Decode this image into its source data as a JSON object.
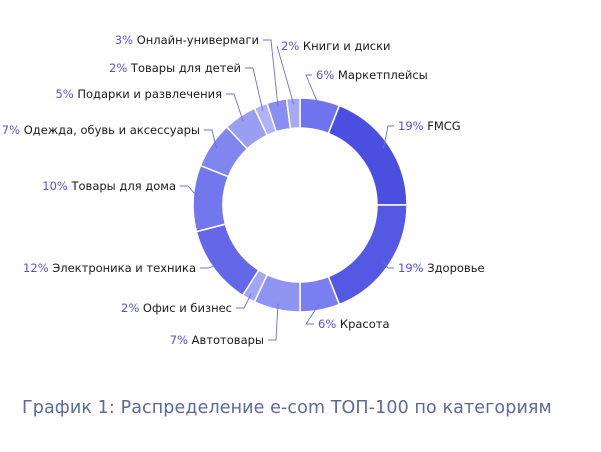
{
  "chart_data": {
    "type": "pie",
    "variant": "donut",
    "slices": [
      {
        "label": "Маркетплейсы",
        "pct_text": "6%",
        "value": 6,
        "color": "#6f74ee"
      },
      {
        "label": "FMCG",
        "pct_text": "19%",
        "value": 19,
        "color": "#4a4fe0"
      },
      {
        "label": "Здоровье",
        "pct_text": "19%",
        "value": 19,
        "color": "#5459e3"
      },
      {
        "label": "Красота",
        "pct_text": "6%",
        "value": 6,
        "color": "#7a7ff0"
      },
      {
        "label": "Автотовары",
        "pct_text": "7%",
        "value": 7,
        "color": "#8f93f2"
      },
      {
        "label": "Офис и бизнес",
        "pct_text": "2%",
        "value": 2,
        "color": "#a3a6f4"
      },
      {
        "label": "Электроника и техника",
        "pct_text": "12%",
        "value": 12,
        "color": "#6468e8"
      },
      {
        "label": "Товары для дома",
        "pct_text": "10%",
        "value": 10,
        "color": "#7277ed"
      },
      {
        "label": "Одежда, обувь и аксессуары",
        "pct_text": "7%",
        "value": 7,
        "color": "#8185ee"
      },
      {
        "label": "Подарки и развлечения",
        "pct_text": "5%",
        "value": 5,
        "color": "#9a9ef2"
      },
      {
        "label": "Товары для детей",
        "pct_text": "2%",
        "value": 2,
        "color": "#b0b3f5"
      },
      {
        "label": "Онлайн-универмаги",
        "pct_text": "3%",
        "value": 3,
        "color": "#8a8ef0"
      },
      {
        "label": "Книги и диски",
        "pct_text": "2%",
        "value": 2,
        "color": "#a6aaf4"
      }
    ],
    "pct_color": "#4f54d6",
    "label_color": "#1a1a1a",
    "leader_color": "#6b6fdc"
  },
  "caption": "График 1: Распределение e-com ТОП-100 по категориям"
}
